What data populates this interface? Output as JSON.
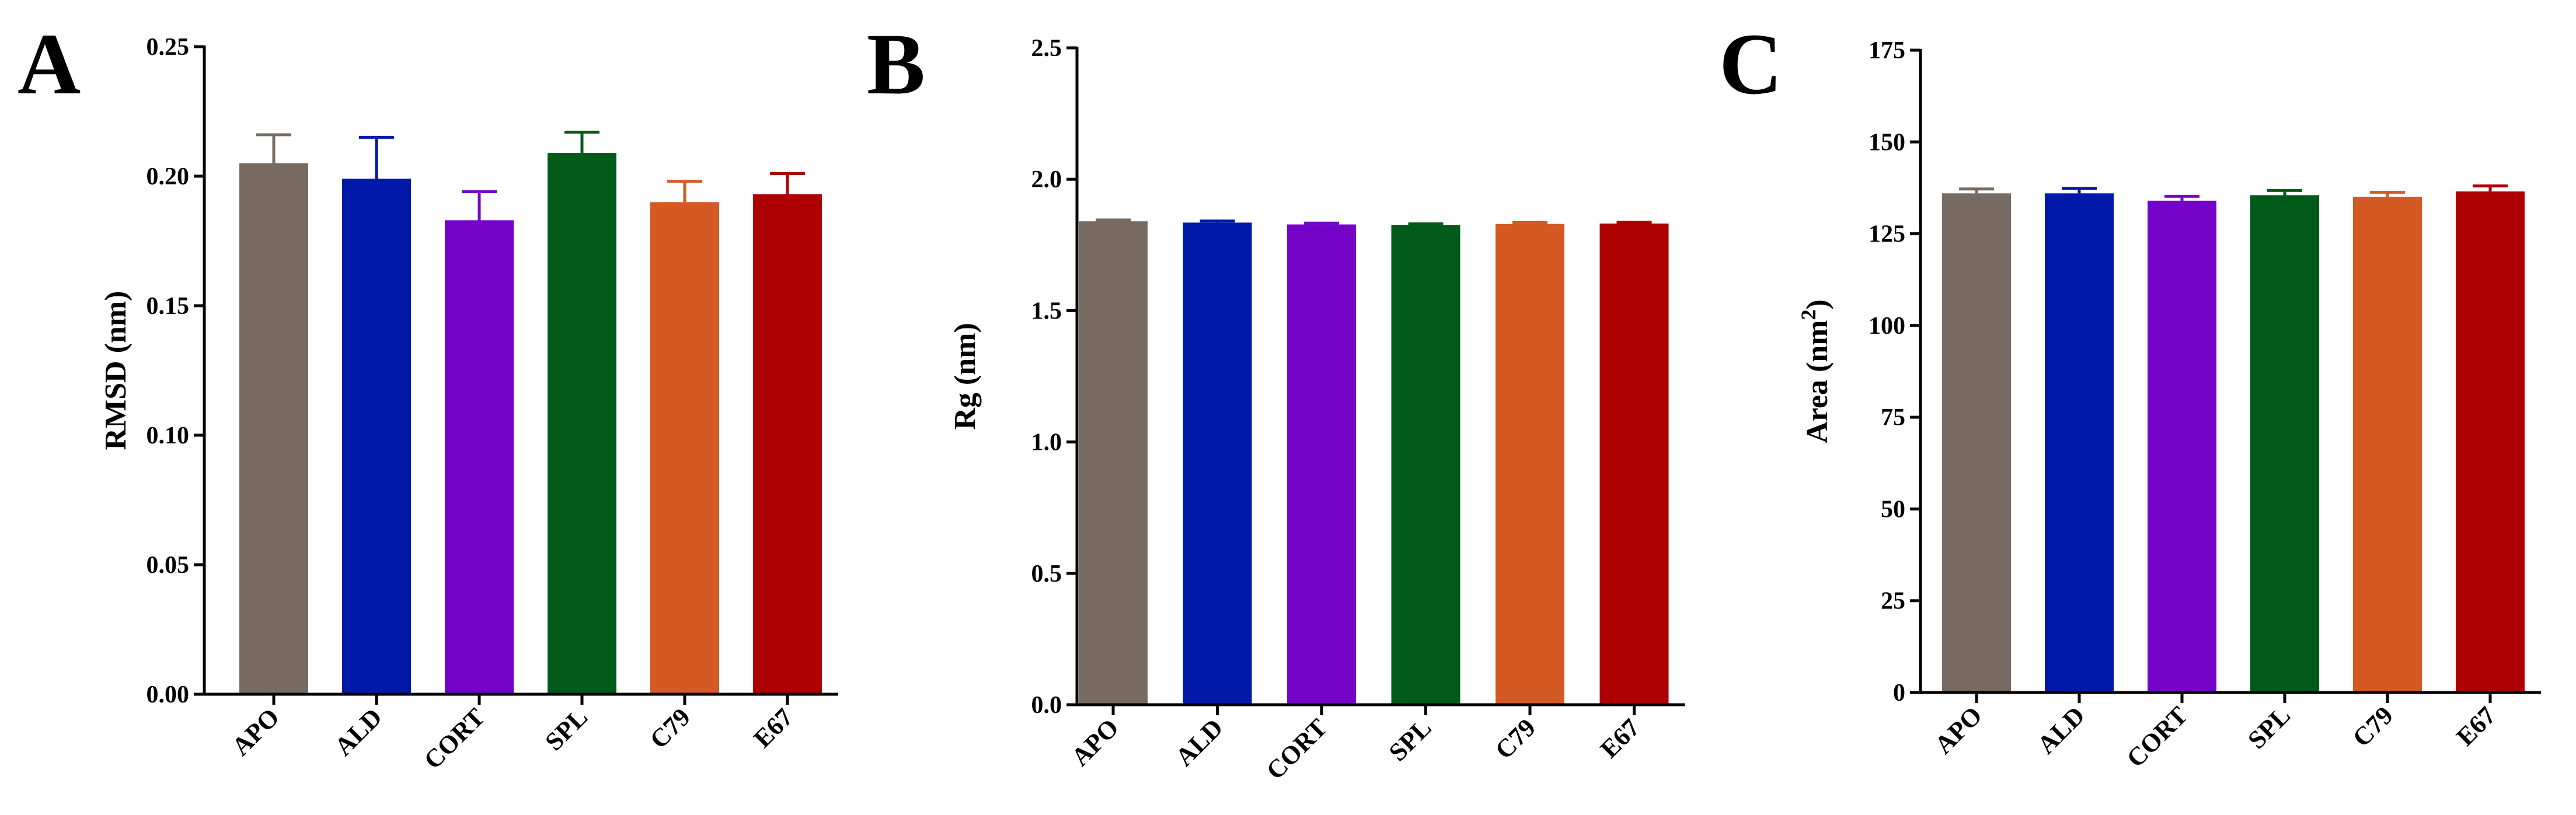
{
  "chart_data": [
    {
      "type": "bar",
      "panel_label": "A",
      "categories": [
        "APO",
        "ALD",
        "CORT",
        "SPL",
        "C79",
        "E67"
      ],
      "values": [
        0.205,
        0.199,
        0.183,
        0.209,
        0.19,
        0.193
      ],
      "errors": [
        0.011,
        0.016,
        0.011,
        0.008,
        0.008,
        0.008
      ],
      "ylabel": "RMSD (nm)",
      "ylabel_sup": "",
      "ylabel_suffix": "",
      "ylim": [
        0,
        0.25
      ],
      "yticks": [
        "0.00",
        "0.05",
        "0.10",
        "0.15",
        "0.20",
        "0.25"
      ],
      "colors": [
        "#776b61",
        "#0119a8",
        "#7504c8",
        "#005b1b",
        "#d35a22",
        "#ac0002"
      ],
      "error_colors": [
        "#776b61",
        "#0119a8",
        "#7504c8",
        "#005b1b",
        "#d35a22",
        "#ac0002"
      ],
      "grid": false,
      "legend": "none"
    },
    {
      "type": "bar",
      "panel_label": "B",
      "categories": [
        "APO",
        "ALD",
        "CORT",
        "SPL",
        "C79",
        "E67"
      ],
      "values": [
        1.84,
        1.835,
        1.828,
        1.825,
        1.83,
        1.831
      ],
      "errors": [
        0.005,
        0.006,
        0.005,
        0.005,
        0.005,
        0.005
      ],
      "ylabel": "Rg (nm)",
      "ylabel_sup": "",
      "ylabel_suffix": "",
      "ylim": [
        0,
        2.5
      ],
      "yticks": [
        "0.0",
        "0.5",
        "1.0",
        "1.5",
        "2.0",
        "2.5"
      ],
      "colors": [
        "#776b61",
        "#0119a8",
        "#7504c8",
        "#005b1b",
        "#d35a22",
        "#ac0002"
      ],
      "error_colors": [
        "#776b61",
        "#0119a8",
        "#7504c8",
        "#005b1b",
        "#d35a22",
        "#ac0002"
      ],
      "grid": false,
      "legend": "none"
    },
    {
      "type": "bar",
      "panel_label": "C",
      "categories": [
        "APO",
        "ALD",
        "CORT",
        "SPL",
        "C79",
        "E67"
      ],
      "values": [
        136,
        136,
        134,
        135.5,
        135,
        136.5
      ],
      "errors": [
        1.2,
        1.3,
        1.2,
        1.3,
        1.3,
        1.5
      ],
      "ylabel": "Area (nm",
      "ylabel_sup": "2",
      "ylabel_suffix": ")",
      "ylim": [
        0,
        175
      ],
      "yticks": [
        "0",
        "25",
        "50",
        "75",
        "100",
        "125",
        "150",
        "175"
      ],
      "colors": [
        "#776b61",
        "#0119a8",
        "#7504c8",
        "#005b1b",
        "#d35a22",
        "#ac0002"
      ],
      "error_colors": [
        "#776b61",
        "#0119a8",
        "#7504c8",
        "#005b1b",
        "#d35a22",
        "#ac0002"
      ],
      "grid": false,
      "legend": "none"
    }
  ]
}
